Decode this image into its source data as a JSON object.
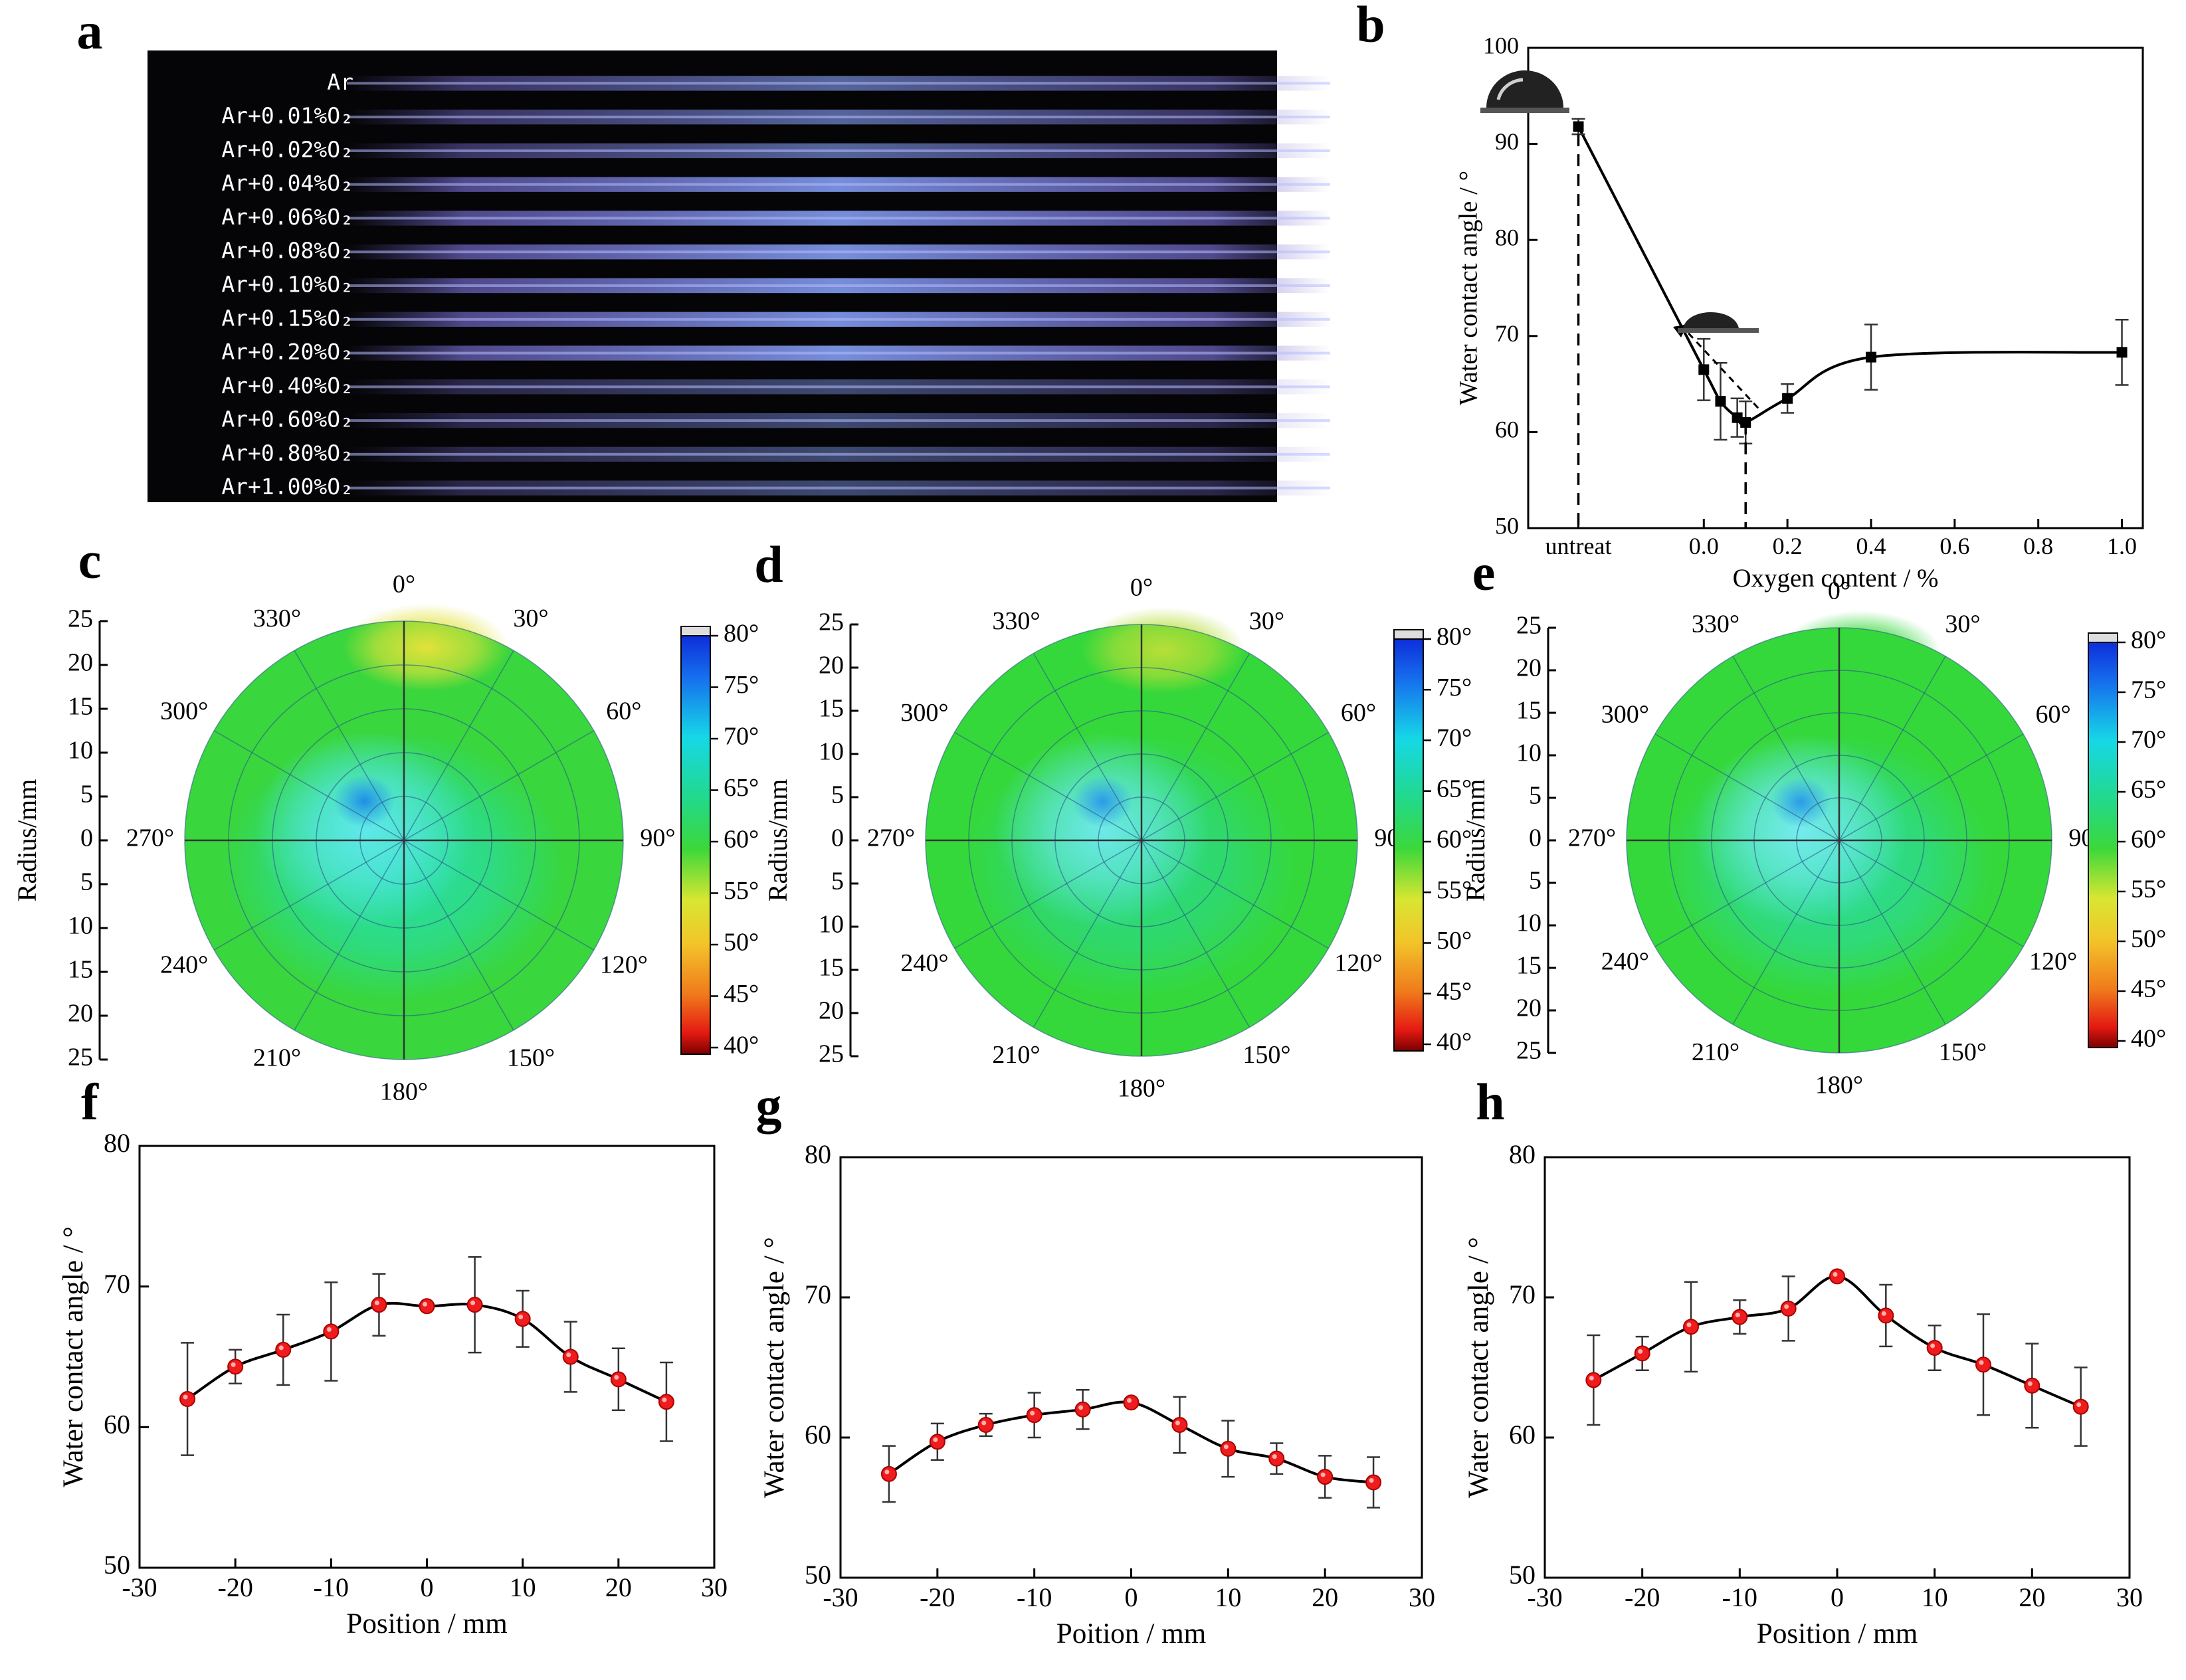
{
  "panel_labels": [
    "a",
    "b",
    "c",
    "d",
    "e",
    "f",
    "g",
    "h"
  ],
  "chart_data": [
    {
      "id": "a",
      "type": "image",
      "rows": [
        "Ar",
        "Ar+0.01%O₂",
        "Ar+0.02%O₂",
        "Ar+0.04%O₂",
        "Ar+0.06%O₂",
        "Ar+0.08%O₂",
        "Ar+0.10%O₂",
        "Ar+0.15%O₂",
        "Ar+0.20%O₂",
        "Ar+0.40%O₂",
        "Ar+0.60%O₂",
        "Ar+0.80%O₂",
        "Ar+1.00%O₂"
      ],
      "colors": {
        "background": "#050507",
        "glow": "#7a86e8",
        "glow_center": "#9ab6ff"
      }
    },
    {
      "id": "b",
      "type": "line",
      "xlabel": "Oxygen content / %",
      "ylabel": "Water contact angle / °",
      "xlim": [
        -0.42,
        1.05
      ],
      "ylim": [
        50,
        100
      ],
      "xticks": [
        {
          "value": -0.3,
          "label": "untreat"
        },
        {
          "value": 0.0,
          "label": "0.0"
        },
        {
          "value": 0.2,
          "label": "0.2"
        },
        {
          "value": 0.4,
          "label": "0.4"
        },
        {
          "value": 0.6,
          "label": "0.6"
        },
        {
          "value": 0.8,
          "label": "0.8"
        },
        {
          "value": 1.0,
          "label": "1.0"
        }
      ],
      "yticks": [
        50,
        60,
        70,
        80,
        90,
        100
      ],
      "points": [
        {
          "x": -0.3,
          "y": 91.8,
          "err": 0.8
        },
        {
          "x": 0.0,
          "y": 66.5,
          "err": 3.2
        },
        {
          "x": 0.04,
          "y": 63.2,
          "err": 4.0
        },
        {
          "x": 0.08,
          "y": 61.5,
          "err": 2.0
        },
        {
          "x": 0.1,
          "y": 61.0,
          "err": 2.2
        },
        {
          "x": 0.2,
          "y": 63.5,
          "err": 1.5
        },
        {
          "x": 0.4,
          "y": 67.8,
          "err": 3.4
        },
        {
          "x": 1.0,
          "y": 68.3,
          "err": 3.4
        }
      ],
      "colors": {
        "line": "#000000"
      }
    },
    {
      "id": "c",
      "type": "heatmap",
      "polar": true,
      "ylabel": "Radius/mm",
      "radius_ticks": [
        "25",
        "20",
        "15",
        "10",
        "5",
        "0",
        "5",
        "10",
        "15",
        "20",
        "25"
      ],
      "angle_labels": [
        "0°",
        "30°",
        "60°",
        "90°",
        "120°",
        "150°",
        "180°",
        "210°",
        "240°",
        "270°",
        "300°",
        "330°"
      ],
      "colorbar": {
        "ticks": [
          "80°",
          "75°",
          "70°",
          "65°",
          "60°",
          "55°",
          "50°",
          "45°",
          "40°"
        ]
      },
      "colors": {
        "base": "#39d63d",
        "mid": "#25dfb4",
        "center": "#5fe8ea",
        "hot": "#e2e23a",
        "cold": "#1f8fe6"
      }
    },
    {
      "id": "d",
      "type": "heatmap",
      "polar": true,
      "ylabel": "Radius/mm",
      "radius_ticks": [
        "25",
        "20",
        "15",
        "10",
        "5",
        "0",
        "5",
        "10",
        "15",
        "20",
        "25"
      ],
      "angle_labels": [
        "0°",
        "30°",
        "60°",
        "90°",
        "120°",
        "150°",
        "180°",
        "210°",
        "240°",
        "270°",
        "300°",
        "330°"
      ],
      "colorbar": {
        "ticks": [
          "80°",
          "75°",
          "70°",
          "65°",
          "60°",
          "55°",
          "50°",
          "45°",
          "40°"
        ]
      },
      "colors": {
        "base": "#35d83a",
        "mid": "#2ad98e",
        "center": "#6ee9e9",
        "hot": "#b8de38",
        "cold": "#2a9be8"
      }
    },
    {
      "id": "e",
      "type": "heatmap",
      "polar": true,
      "ylabel": "Radius/mm",
      "radius_ticks": [
        "25",
        "20",
        "15",
        "10",
        "5",
        "0",
        "5",
        "10",
        "15",
        "20",
        "25"
      ],
      "angle_labels": [
        "0°",
        "30°",
        "60°",
        "90°",
        "120°",
        "150°",
        "180°",
        "210°",
        "240°",
        "270°",
        "300°",
        "330°"
      ],
      "colorbar": {
        "ticks": [
          "80°",
          "75°",
          "70°",
          "65°",
          "60°",
          "55°",
          "50°",
          "45°",
          "40°"
        ]
      },
      "colors": {
        "base": "#35d83a",
        "mid": "#2bdca8",
        "center": "#75ebee",
        "hot": "#35d83a",
        "cold": "#2a9be8"
      }
    },
    {
      "id": "f",
      "type": "line",
      "xlabel": "Position / mm",
      "ylabel": "Water contact angle / °",
      "xlim": [
        -30,
        30
      ],
      "ylim": [
        50,
        80
      ],
      "xticks": [
        -30,
        -20,
        -10,
        0,
        10,
        20,
        30
      ],
      "yticks": [
        50,
        60,
        70,
        80
      ],
      "points": [
        {
          "x": -25,
          "y": 62.0,
          "err": 4.0
        },
        {
          "x": -20,
          "y": 64.3,
          "err": 1.2
        },
        {
          "x": -15,
          "y": 65.5,
          "err": 2.5
        },
        {
          "x": -10,
          "y": 66.8,
          "err": 3.5
        },
        {
          "x": -5,
          "y": 68.7,
          "err": 2.2
        },
        {
          "x": 0,
          "y": 68.6,
          "err": 0
        },
        {
          "x": 5,
          "y": 68.7,
          "err": 3.4
        },
        {
          "x": 10,
          "y": 67.7,
          "err": 2.0
        },
        {
          "x": 15,
          "y": 65.0,
          "err": 2.5
        },
        {
          "x": 20,
          "y": 63.4,
          "err": 2.2
        },
        {
          "x": 25,
          "y": 61.8,
          "err": 2.8
        }
      ],
      "colors": {
        "marker": "#ee1c1c",
        "line": "#000000"
      }
    },
    {
      "id": "g",
      "type": "line",
      "xlabel": "Poition / mm",
      "ylabel": "Water contact angle / °",
      "xlim": [
        -30,
        30
      ],
      "ylim": [
        50,
        80
      ],
      "xticks": [
        -30,
        -20,
        -10,
        0,
        10,
        20,
        30
      ],
      "yticks": [
        50,
        60,
        70,
        80
      ],
      "points": [
        {
          "x": -25,
          "y": 57.4,
          "err": 2.0
        },
        {
          "x": -20,
          "y": 59.7,
          "err": 1.3
        },
        {
          "x": -15,
          "y": 60.9,
          "err": 0.8
        },
        {
          "x": -10,
          "y": 61.6,
          "err": 1.6
        },
        {
          "x": -5,
          "y": 62.0,
          "err": 1.4
        },
        {
          "x": 0,
          "y": 62.5,
          "err": 0
        },
        {
          "x": 5,
          "y": 60.9,
          "err": 2.0
        },
        {
          "x": 10,
          "y": 59.2,
          "err": 2.0
        },
        {
          "x": 15,
          "y": 58.5,
          "err": 1.1
        },
        {
          "x": 20,
          "y": 57.2,
          "err": 1.5
        },
        {
          "x": 25,
          "y": 56.8,
          "err": 1.8
        }
      ],
      "colors": {
        "marker": "#ee1c1c",
        "line": "#000000"
      }
    },
    {
      "id": "h",
      "type": "line",
      "xlabel": "Position / mm",
      "ylabel": "Water contact angle / °",
      "xlim": [
        -30,
        30
      ],
      "ylim": [
        50,
        80
      ],
      "xticks": [
        -30,
        -20,
        -10,
        0,
        10,
        20,
        30
      ],
      "yticks": [
        50,
        60,
        70,
        80
      ],
      "points": [
        {
          "x": -25,
          "y": 64.1,
          "err": 3.2
        },
        {
          "x": -20,
          "y": 66.0,
          "err": 1.2
        },
        {
          "x": -15,
          "y": 67.9,
          "err": 3.2
        },
        {
          "x": -10,
          "y": 68.6,
          "err": 1.2
        },
        {
          "x": -5,
          "y": 69.2,
          "err": 2.3
        },
        {
          "x": 0,
          "y": 71.5,
          "err": 0
        },
        {
          "x": 5,
          "y": 68.7,
          "err": 2.2
        },
        {
          "x": 10,
          "y": 66.4,
          "err": 1.6
        },
        {
          "x": 15,
          "y": 65.2,
          "err": 3.6
        },
        {
          "x": 20,
          "y": 63.7,
          "err": 3.0
        },
        {
          "x": 25,
          "y": 62.2,
          "err": 2.8
        }
      ],
      "colors": {
        "marker": "#ee1c1c",
        "line": "#000000"
      }
    }
  ]
}
